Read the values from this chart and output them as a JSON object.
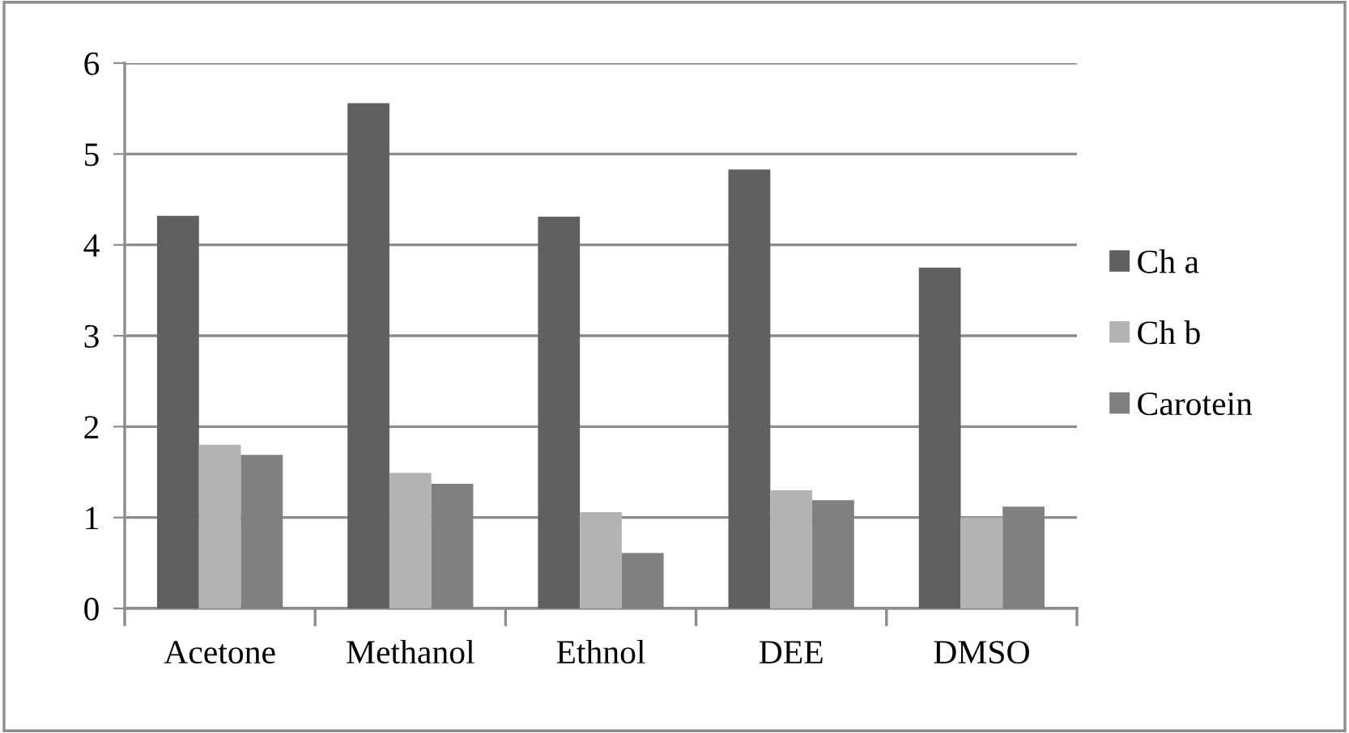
{
  "chart_data": {
    "type": "bar",
    "categories": [
      "Acetone",
      "Methanol",
      "Ethnol",
      "DEE",
      "DMSO"
    ],
    "series": [
      {
        "name": "Ch a",
        "color": "#606060",
        "values": [
          4.32,
          5.56,
          4.31,
          4.83,
          3.75
        ]
      },
      {
        "name": "Ch b",
        "color": "#b3b3b3",
        "values": [
          1.8,
          1.49,
          1.06,
          1.3,
          1.0
        ]
      },
      {
        "name": "Carotein",
        "color": "#808080",
        "values": [
          1.69,
          1.37,
          0.61,
          1.19,
          1.12
        ]
      }
    ],
    "ylim": [
      0,
      6
    ],
    "yticks": [
      0,
      1,
      2,
      3,
      4,
      5,
      6
    ],
    "grid": "y",
    "legend": "right"
  }
}
